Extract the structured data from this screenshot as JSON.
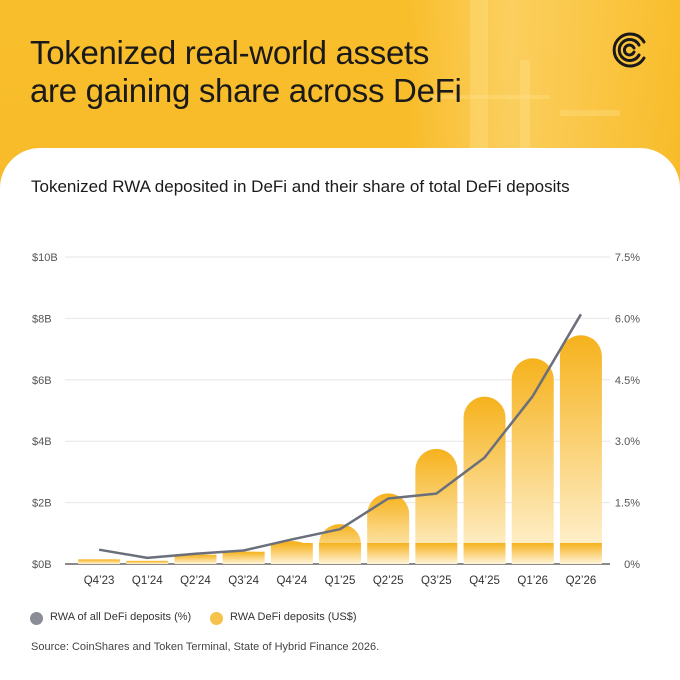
{
  "headline": {
    "line1": "Tokenized real-world assets",
    "line2": "are gaining share across DeFi"
  },
  "logo_icon": "c-arcs-logo-icon",
  "chart_title": "Tokenized RWA deposited in DeFi and their share of total DeFi deposits",
  "chart_data": {
    "type": "bar",
    "categories": [
      "Q4’23",
      "Q1’24",
      "Q2’24",
      "Q3’24",
      "Q4’24",
      "Q1’25",
      "Q2’25",
      "Q3’25",
      "Q4’25",
      "Q1’26",
      "Q2’26"
    ],
    "series": [
      {
        "name": "RWA DeFi deposits (US$)",
        "type": "bar",
        "axis": "left",
        "color": "#f7b928",
        "values": [
          0.15,
          0.1,
          0.3,
          0.4,
          0.75,
          1.3,
          2.3,
          3.75,
          5.45,
          6.7,
          7.45
        ]
      },
      {
        "name": "RWA of all DeFi deposits (%)",
        "type": "line",
        "axis": "right",
        "color": "#6b6f7b",
        "values": [
          0.35,
          0.15,
          0.25,
          0.33,
          0.6,
          0.85,
          1.6,
          1.72,
          2.6,
          4.1,
          6.1
        ]
      }
    ],
    "y_left": {
      "ticks": [
        "$0B",
        "$2B",
        "$4B",
        "$6B",
        "$8B",
        "$10B"
      ],
      "tick_values": [
        0,
        2,
        4,
        6,
        8,
        10
      ],
      "ylim": [
        0,
        10
      ]
    },
    "y_right": {
      "ticks": [
        "0%",
        "1.5%",
        "3.0%",
        "4.5%",
        "6.0%",
        "7.5%"
      ],
      "tick_values": [
        0,
        1.5,
        3.0,
        4.5,
        6.0,
        7.5
      ],
      "ylim": [
        0,
        7.5
      ]
    },
    "grid": true,
    "legend_position": "bottom-left"
  },
  "legend": {
    "line_label": "RWA of all DeFi deposits (%)",
    "bar_label": "RWA DeFi deposits (US$)"
  },
  "source": "Source: CoinShares and Token Terminal, State of Hybrid Finance 2026."
}
